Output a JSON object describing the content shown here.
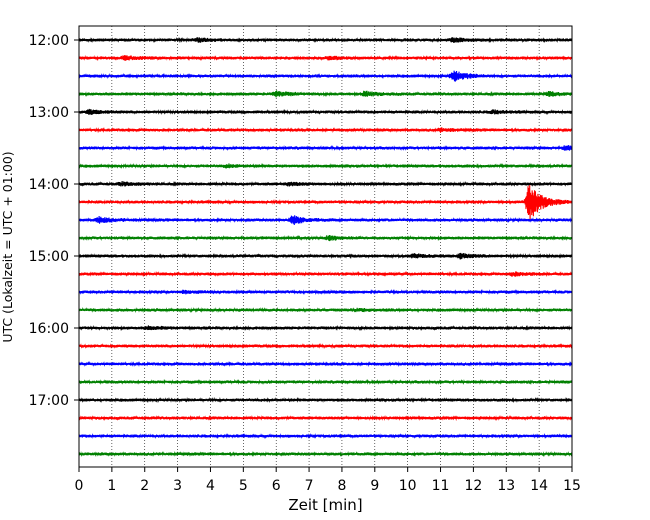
{
  "chart_data": {
    "type": "line",
    "title": "",
    "xlabel": "Zeit  [min]",
    "ylabel": "UTC (Lokalzeit = UTC + 01:00)",
    "xlim": [
      0,
      15
    ],
    "x_ticks": [
      "0",
      "1",
      "2",
      "3",
      "4",
      "5",
      "6",
      "7",
      "8",
      "9",
      "10",
      "11",
      "12",
      "13",
      "14",
      "15"
    ],
    "y_ticks": [
      "12:00",
      "13:00",
      "14:00",
      "15:00",
      "16:00",
      "17:00"
    ],
    "trace_interval_minutes": 15,
    "start_utc": "12:00",
    "trace_count": 24,
    "grid": "vertical-dotted",
    "legend": "none",
    "colors": [
      "#000000",
      "#ff0000",
      "#0000ff",
      "#008000"
    ],
    "series": [
      {
        "start": "12:00",
        "color": "#000000",
        "events": [
          {
            "x": 3.6,
            "amp": 0.25
          },
          {
            "x": 11.4,
            "amp": 0.3
          }
        ]
      },
      {
        "start": "12:15",
        "color": "#ff0000",
        "events": [
          {
            "x": 1.4,
            "amp": 0.3
          },
          {
            "x": 7.6,
            "amp": 0.2
          }
        ]
      },
      {
        "start": "12:30",
        "color": "#0000ff",
        "events": [
          {
            "x": 11.4,
            "amp": 0.9
          }
        ]
      },
      {
        "start": "12:45",
        "color": "#008000",
        "events": [
          {
            "x": 6.0,
            "amp": 0.35
          },
          {
            "x": 8.7,
            "amp": 0.35
          },
          {
            "x": 14.3,
            "amp": 0.3
          }
        ]
      },
      {
        "start": "13:00",
        "color": "#000000",
        "events": [
          {
            "x": 0.3,
            "amp": 0.3
          },
          {
            "x": 12.6,
            "amp": 0.25
          }
        ]
      },
      {
        "start": "13:15",
        "color": "#ff0000",
        "events": [
          {
            "x": 11.0,
            "amp": 0.2
          }
        ]
      },
      {
        "start": "13:30",
        "color": "#0000ff",
        "events": [
          {
            "x": 14.8,
            "amp": 0.3
          }
        ]
      },
      {
        "start": "13:45",
        "color": "#008000",
        "events": [
          {
            "x": 4.5,
            "amp": 0.2
          }
        ]
      },
      {
        "start": "14:00",
        "color": "#000000",
        "events": [
          {
            "x": 1.3,
            "amp": 0.25
          },
          {
            "x": 6.4,
            "amp": 0.2
          }
        ]
      },
      {
        "start": "14:15",
        "color": "#ff0000",
        "events": [
          {
            "x": 13.7,
            "amp": 3.2
          }
        ]
      },
      {
        "start": "14:30",
        "color": "#0000ff",
        "events": [
          {
            "x": 0.6,
            "amp": 0.45
          },
          {
            "x": 6.5,
            "amp": 0.7
          }
        ]
      },
      {
        "start": "14:45",
        "color": "#008000",
        "events": [
          {
            "x": 7.6,
            "amp": 0.3
          }
        ]
      },
      {
        "start": "15:00",
        "color": "#000000",
        "events": [
          {
            "x": 10.2,
            "amp": 0.3
          },
          {
            "x": 11.6,
            "amp": 0.35
          }
        ]
      },
      {
        "start": "15:15",
        "color": "#ff0000",
        "events": [
          {
            "x": 13.2,
            "amp": 0.25
          }
        ]
      },
      {
        "start": "15:30",
        "color": "#0000ff",
        "events": [
          {
            "x": 3.2,
            "amp": 0.2
          }
        ]
      },
      {
        "start": "15:45",
        "color": "#008000",
        "events": [
          {
            "x": 8.5,
            "amp": 0.15
          }
        ]
      },
      {
        "start": "16:00",
        "color": "#000000",
        "events": [
          {
            "x": 2.1,
            "amp": 0.2
          }
        ]
      },
      {
        "start": "16:15",
        "color": "#ff0000",
        "events": []
      },
      {
        "start": "16:30",
        "color": "#0000ff",
        "events": []
      },
      {
        "start": "16:45",
        "color": "#008000",
        "events": []
      },
      {
        "start": "17:00",
        "color": "#000000",
        "events": []
      },
      {
        "start": "17:15",
        "color": "#ff0000",
        "events": []
      },
      {
        "start": "17:30",
        "color": "#0000ff",
        "events": []
      },
      {
        "start": "17:45",
        "color": "#008000",
        "events": []
      }
    ]
  }
}
